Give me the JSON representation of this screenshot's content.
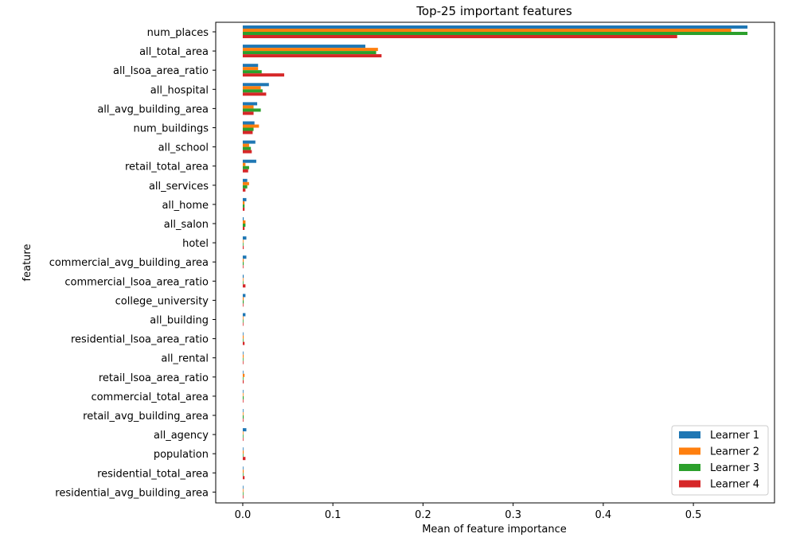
{
  "chart_data": {
    "type": "bar",
    "orientation": "horizontal",
    "title": "Top-25 important features",
    "xlabel": "Mean of feature importance",
    "ylabel": "feature",
    "xlim": [
      -0.03,
      0.59
    ],
    "xticks": [
      0.0,
      0.1,
      0.2,
      0.3,
      0.4,
      0.5
    ],
    "xtick_labels": [
      "0.0",
      "0.1",
      "0.2",
      "0.3",
      "0.4",
      "0.5"
    ],
    "grid": false,
    "legend_position": "bottom-right",
    "categories": [
      "num_places",
      "all_total_area",
      "all_lsoa_area_ratio",
      "all_hospital",
      "all_avg_building_area",
      "num_buildings",
      "all_school",
      "retail_total_area",
      "all_services",
      "all_home",
      "all_salon",
      "hotel",
      "commercial_avg_building_area",
      "commercial_lsoa_area_ratio",
      "college_university",
      "all_building",
      "residential_lsoa_area_ratio",
      "all_rental",
      "retail_lsoa_area_ratio",
      "commercial_total_area",
      "retail_avg_building_area",
      "all_agency",
      "population",
      "residential_total_area",
      "residential_avg_building_area"
    ],
    "series": [
      {
        "name": "Learner 1",
        "color": "#1f77b4",
        "values": [
          0.56,
          0.136,
          0.017,
          0.029,
          0.016,
          0.013,
          0.014,
          0.015,
          0.005,
          0.004,
          0.001,
          0.004,
          0.004,
          0.001,
          0.003,
          0.003,
          0.0005,
          0.0005,
          0.0005,
          0.0005,
          0.0005,
          0.004,
          0.0005,
          0.0005,
          0.0005
        ]
      },
      {
        "name": "Learner 2",
        "color": "#ff7f0e",
        "values": [
          0.542,
          0.15,
          0.017,
          0.02,
          0.012,
          0.018,
          0.007,
          0.003,
          0.007,
          0.002,
          0.003,
          0.0005,
          0.001,
          0.0005,
          0.001,
          0.0005,
          0.001,
          0.001,
          0.002,
          0.0005,
          0.0005,
          0.0005,
          0.001,
          0.001,
          0.0005
        ]
      },
      {
        "name": "Learner 3",
        "color": "#2ca02c",
        "values": [
          0.56,
          0.148,
          0.021,
          0.022,
          0.02,
          0.012,
          0.009,
          0.007,
          0.005,
          0.002,
          0.003,
          0.0005,
          0.001,
          0.0005,
          0.001,
          0.0005,
          0.0005,
          0.0005,
          0.0005,
          0.001,
          0.001,
          0.0005,
          0.0005,
          0.0005,
          0.0005
        ]
      },
      {
        "name": "Learner 4",
        "color": "#d62728",
        "values": [
          0.482,
          0.154,
          0.046,
          0.026,
          0.012,
          0.011,
          0.01,
          0.006,
          0.003,
          0.002,
          0.002,
          0.001,
          0.0005,
          0.003,
          0.0005,
          0.0005,
          0.002,
          0.0005,
          0.001,
          0.0005,
          0.0005,
          0.0005,
          0.003,
          0.002,
          0.0005
        ]
      }
    ]
  }
}
